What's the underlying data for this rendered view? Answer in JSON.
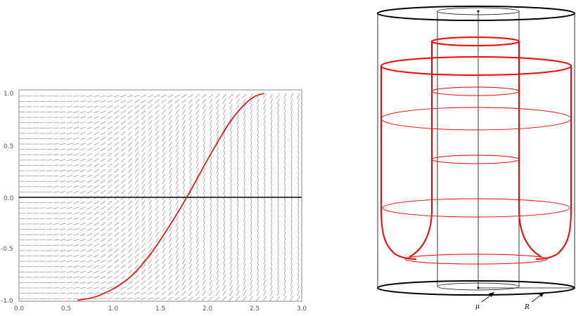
{
  "slope_field_panel": {
    "x_ticks": [
      "0.0",
      "0.5",
      "1.0",
      "1.5",
      "2.0",
      "2.5",
      "3.0"
    ],
    "y_ticks": [
      "1.0",
      "0.5",
      "0.0",
      "-0.5",
      "-1.0"
    ],
    "colors": {
      "frame": "#888888",
      "field": "#9a9a9a",
      "axis": "#000000",
      "curve": "#ff0000"
    }
  },
  "cylinder_panel": {
    "labels": {
      "mu": "μ",
      "radius": "R"
    },
    "colors": {
      "outline": "#000000",
      "surface": "#ff0000"
    }
  },
  "chart_data": {
    "type": "line",
    "title": "",
    "xlabel": "",
    "ylabel": "",
    "xlim": [
      0,
      3
    ],
    "ylim": [
      -1,
      1
    ],
    "grid": false,
    "x_ticks": [
      0,
      0.5,
      1,
      1.5,
      2,
      2.5,
      3
    ],
    "y_ticks": [
      1,
      0.5,
      0,
      -0.5,
      -1
    ],
    "series": [
      {
        "color": "#ff0000",
        "x": [
          0.62,
          0.8,
          1.0,
          1.2,
          1.4,
          1.6,
          1.78,
          1.95,
          2.1,
          2.25,
          2.4,
          2.5,
          2.6
        ],
        "y": [
          -0.99,
          -0.96,
          -0.88,
          -0.75,
          -0.54,
          -0.27,
          0.0,
          0.28,
          0.52,
          0.74,
          0.9,
          0.97,
          1.0
        ]
      }
    ]
  }
}
